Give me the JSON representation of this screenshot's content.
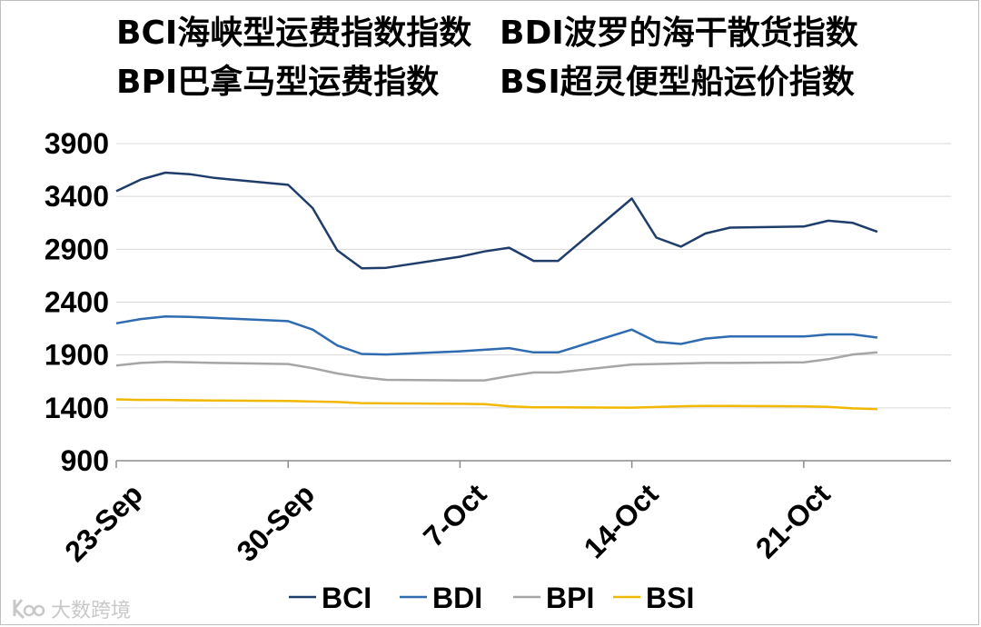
{
  "title_lines": [
    [
      "BCI海峡型运费指数指数",
      "BDI波罗的海干散货指数"
    ],
    [
      "BPI巴拿马型运费指数",
      "BSI超灵便型船运价指数"
    ]
  ],
  "watermark": {
    "text": "大数跨境",
    "icon": "logo-icon"
  },
  "chart_data": {
    "type": "line",
    "title": "",
    "xlabel": "",
    "ylabel": "",
    "ylim": [
      900,
      3900
    ],
    "yticks": [
      900,
      1400,
      1900,
      2400,
      2900,
      3400,
      3900
    ],
    "x_range": [
      "2024-09-23",
      "2024-10-27"
    ],
    "xtick_labels": [
      {
        "label": "23-Sep",
        "x": "2024-09-23"
      },
      {
        "label": "30-Sep",
        "x": "2024-09-30"
      },
      {
        "label": "7-Oct",
        "x": "2024-10-07"
      },
      {
        "label": "14-Oct",
        "x": "2024-10-14"
      },
      {
        "label": "21-Oct",
        "x": "2024-10-21"
      }
    ],
    "grid": "horizontal",
    "legend": "bottom",
    "series": [
      {
        "name": "BCI",
        "color": "#1f3d6b",
        "points": [
          [
            "2024-09-23",
            3450
          ],
          [
            "2024-09-24",
            3560
          ],
          [
            "2024-09-25",
            3625
          ],
          [
            "2024-09-26",
            3610
          ],
          [
            "2024-09-27",
            3575
          ],
          [
            "2024-09-30",
            3510
          ],
          [
            "2024-10-01",
            3290
          ],
          [
            "2024-10-02",
            2890
          ],
          [
            "2024-10-03",
            2720
          ],
          [
            "2024-10-04",
            2725
          ],
          [
            "2024-10-07",
            2830
          ],
          [
            "2024-10-08",
            2880
          ],
          [
            "2024-10-09",
            2915
          ],
          [
            "2024-10-10",
            2790
          ],
          [
            "2024-10-11",
            2790
          ],
          [
            "2024-10-14",
            3380
          ],
          [
            "2024-10-15",
            3010
          ],
          [
            "2024-10-16",
            2925
          ],
          [
            "2024-10-17",
            3050
          ],
          [
            "2024-10-18",
            3105
          ],
          [
            "2024-10-21",
            3115
          ],
          [
            "2024-10-22",
            3170
          ],
          [
            "2024-10-23",
            3150
          ],
          [
            "2024-10-24",
            3065
          ]
        ]
      },
      {
        "name": "BDI",
        "color": "#2e6bb0",
        "points": [
          [
            "2024-09-23",
            2200
          ],
          [
            "2024-09-24",
            2240
          ],
          [
            "2024-09-25",
            2265
          ],
          [
            "2024-09-26",
            2260
          ],
          [
            "2024-09-27",
            2250
          ],
          [
            "2024-09-30",
            2220
          ],
          [
            "2024-10-01",
            2140
          ],
          [
            "2024-10-02",
            1990
          ],
          [
            "2024-10-03",
            1910
          ],
          [
            "2024-10-04",
            1905
          ],
          [
            "2024-10-07",
            1935
          ],
          [
            "2024-10-08",
            1950
          ],
          [
            "2024-10-09",
            1965
          ],
          [
            "2024-10-10",
            1925
          ],
          [
            "2024-10-11",
            1925
          ],
          [
            "2024-10-14",
            2140
          ],
          [
            "2024-10-15",
            2025
          ],
          [
            "2024-10-16",
            2005
          ],
          [
            "2024-10-17",
            2055
          ],
          [
            "2024-10-18",
            2075
          ],
          [
            "2024-10-21",
            2075
          ],
          [
            "2024-10-22",
            2095
          ],
          [
            "2024-10-23",
            2095
          ],
          [
            "2024-10-24",
            2065
          ]
        ]
      },
      {
        "name": "BPI",
        "color": "#a6a6a6",
        "points": [
          [
            "2024-09-23",
            1800
          ],
          [
            "2024-09-24",
            1825
          ],
          [
            "2024-09-25",
            1835
          ],
          [
            "2024-09-26",
            1830
          ],
          [
            "2024-09-27",
            1825
          ],
          [
            "2024-09-30",
            1815
          ],
          [
            "2024-10-01",
            1775
          ],
          [
            "2024-10-02",
            1725
          ],
          [
            "2024-10-03",
            1690
          ],
          [
            "2024-10-04",
            1665
          ],
          [
            "2024-10-07",
            1660
          ],
          [
            "2024-10-08",
            1660
          ],
          [
            "2024-10-09",
            1700
          ],
          [
            "2024-10-10",
            1735
          ],
          [
            "2024-10-11",
            1735
          ],
          [
            "2024-10-14",
            1810
          ],
          [
            "2024-10-15",
            1815
          ],
          [
            "2024-10-16",
            1820
          ],
          [
            "2024-10-17",
            1825
          ],
          [
            "2024-10-18",
            1825
          ],
          [
            "2024-10-21",
            1830
          ],
          [
            "2024-10-22",
            1860
          ],
          [
            "2024-10-23",
            1905
          ],
          [
            "2024-10-24",
            1925
          ]
        ]
      },
      {
        "name": "BSI",
        "color": "#f2b800",
        "points": [
          [
            "2024-09-23",
            1480
          ],
          [
            "2024-09-24",
            1475
          ],
          [
            "2024-09-25",
            1475
          ],
          [
            "2024-09-26",
            1472
          ],
          [
            "2024-09-27",
            1470
          ],
          [
            "2024-09-30",
            1465
          ],
          [
            "2024-10-01",
            1460
          ],
          [
            "2024-10-02",
            1455
          ],
          [
            "2024-10-03",
            1445
          ],
          [
            "2024-10-04",
            1442
          ],
          [
            "2024-10-07",
            1438
          ],
          [
            "2024-10-08",
            1435
          ],
          [
            "2024-10-09",
            1415
          ],
          [
            "2024-10-10",
            1405
          ],
          [
            "2024-10-11",
            1405
          ],
          [
            "2024-10-14",
            1402
          ],
          [
            "2024-10-15",
            1408
          ],
          [
            "2024-10-16",
            1415
          ],
          [
            "2024-10-17",
            1418
          ],
          [
            "2024-10-18",
            1418
          ],
          [
            "2024-10-21",
            1415
          ],
          [
            "2024-10-22",
            1410
          ],
          [
            "2024-10-23",
            1395
          ],
          [
            "2024-10-24",
            1388
          ]
        ]
      }
    ]
  }
}
